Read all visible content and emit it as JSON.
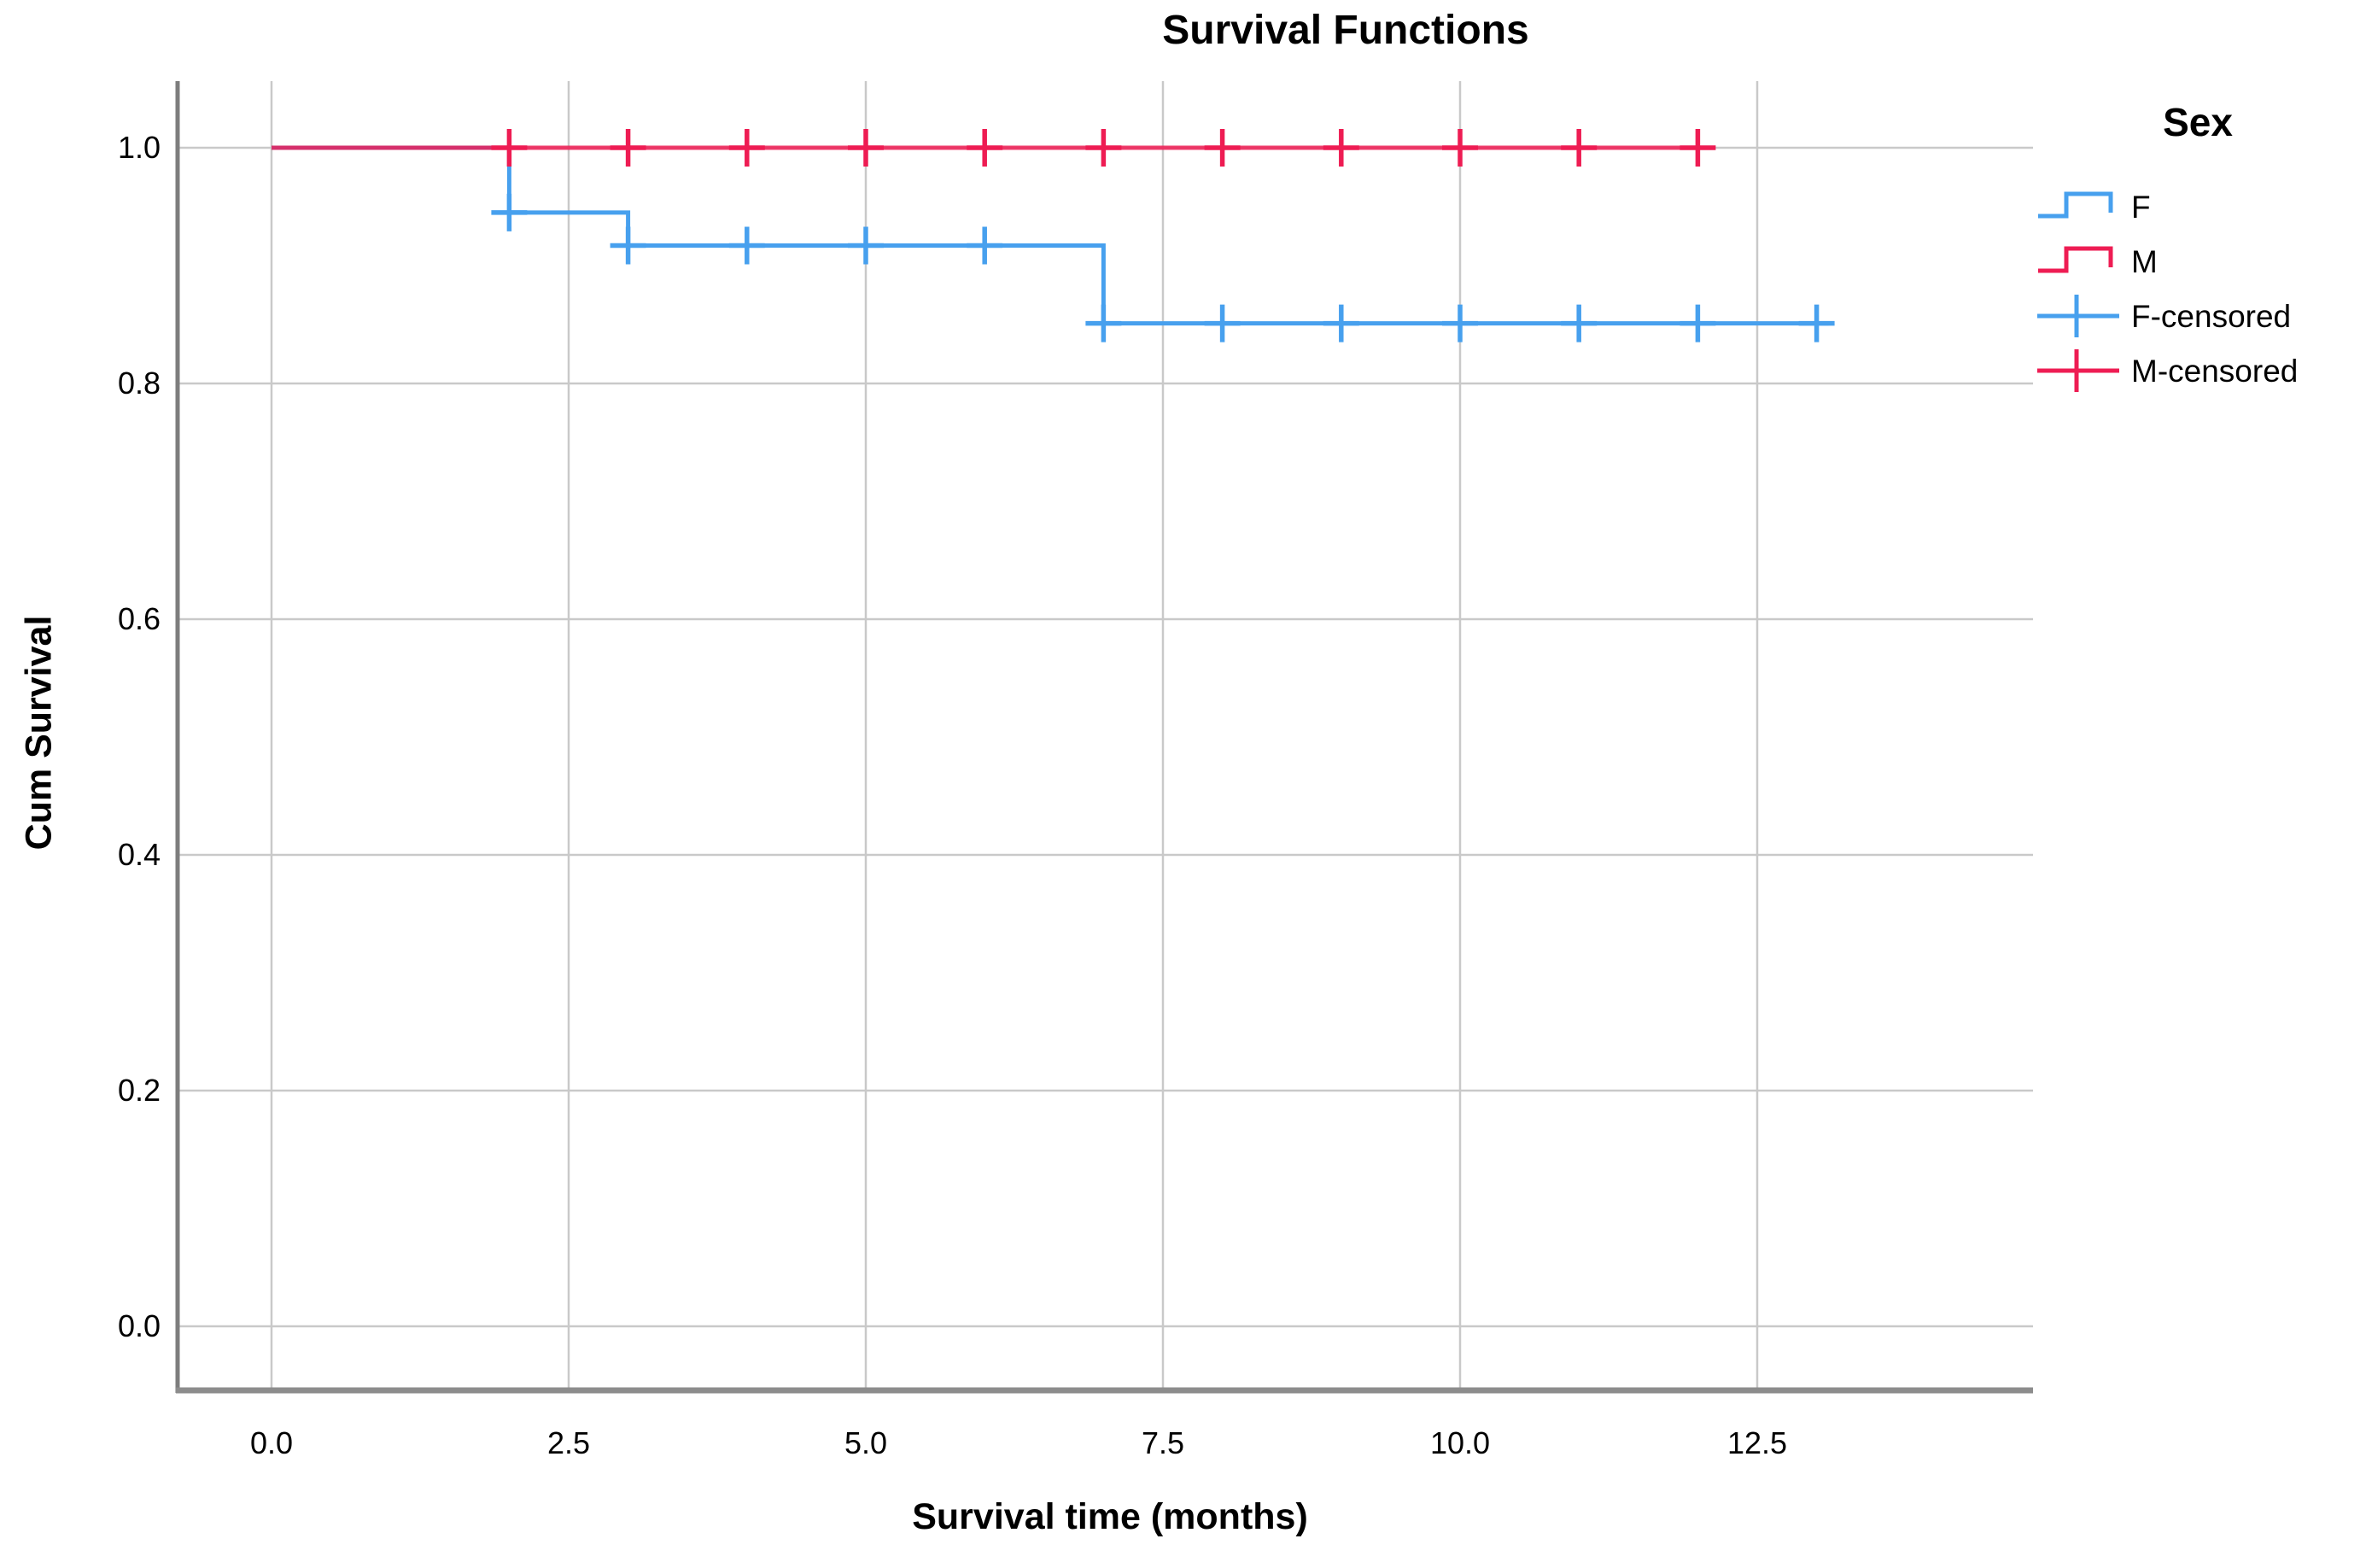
{
  "figure": {
    "background": "#ffffff"
  },
  "chart_data": {
    "type": "line",
    "subtype": "kaplan-meier-step",
    "title": "Survival Functions",
    "xlabel": "Survival time (months)",
    "ylabel": "Cum Survival",
    "grid": true,
    "legend_position": "right",
    "x_ticks": {
      "labels": [
        "0.0",
        "2.5",
        "5.0",
        "7.5",
        "10.0",
        "12.5"
      ],
      "values": [
        0,
        2.5,
        5,
        7.5,
        10,
        12.5
      ]
    },
    "y_ticks": {
      "labels": [
        "0.0",
        "0.2",
        "0.4",
        "0.6",
        "0.8",
        "1.0"
      ],
      "values": [
        0,
        0.2,
        0.4,
        0.6,
        0.8,
        1.0
      ]
    },
    "xlim": [
      -0.79,
      14.82
    ],
    "ylim": [
      -0.054,
      1.057
    ],
    "series": [
      {
        "name": "F",
        "color": "#47A0EE",
        "points": [
          [
            0,
            1.0
          ],
          [
            2,
            1.0
          ],
          [
            2,
            0.945
          ],
          [
            3,
            0.945
          ],
          [
            3,
            0.917
          ],
          [
            7,
            0.917
          ],
          [
            7,
            0.851
          ],
          [
            13.1,
            0.851
          ]
        ]
      },
      {
        "name": "M",
        "color": "#EE1C53",
        "points": [
          [
            0,
            1.0
          ],
          [
            12.1,
            1.0
          ]
        ]
      }
    ],
    "censored": [
      {
        "name": "F-censored",
        "color": "#47A0EE",
        "points": [
          [
            2,
            0.945
          ],
          [
            3,
            0.917
          ],
          [
            4,
            0.917
          ],
          [
            5,
            0.917
          ],
          [
            6,
            0.917
          ],
          [
            7,
            0.851
          ],
          [
            8,
            0.851
          ],
          [
            9,
            0.851
          ],
          [
            10,
            0.851
          ],
          [
            11,
            0.851
          ],
          [
            12,
            0.851
          ],
          [
            13,
            0.851
          ]
        ]
      },
      {
        "name": "M-censored",
        "color": "#EE1C53",
        "points": [
          [
            2,
            1.0
          ],
          [
            3,
            1.0
          ],
          [
            4,
            1.0
          ],
          [
            5,
            1.0
          ],
          [
            6,
            1.0
          ],
          [
            7,
            1.0
          ],
          [
            8,
            1.0
          ],
          [
            9,
            1.0
          ],
          [
            10,
            1.0
          ],
          [
            11,
            1.0
          ],
          [
            12,
            1.0
          ]
        ]
      }
    ],
    "colors": {
      "grid": "#c9c9c9",
      "axis": "#8c8c8c",
      "text": "#000000"
    }
  },
  "legend": {
    "title": "Sex",
    "entries": [
      {
        "label": "F",
        "color": "#47A0EE",
        "symbol": "step"
      },
      {
        "label": "M",
        "color": "#EE1C53",
        "symbol": "step"
      },
      {
        "label": "F-censored",
        "color": "#47A0EE",
        "symbol": "censor"
      },
      {
        "label": "M-censored",
        "color": "#EE1C53",
        "symbol": "censor"
      }
    ]
  }
}
